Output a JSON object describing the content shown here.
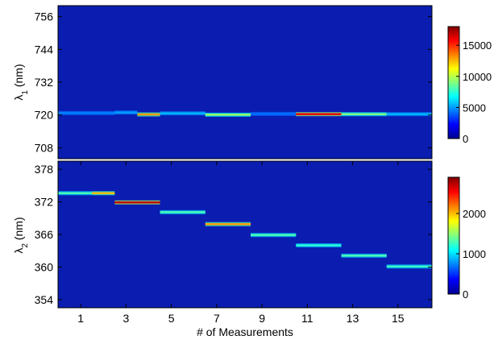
{
  "chart_data": [
    {
      "type": "heatmap",
      "title": "",
      "ylabel_base": "λ",
      "ylabel_sub": "1",
      "ylabel_unit": " (nm)",
      "xlim": [
        0,
        16.5
      ],
      "ylim": [
        760,
        704
      ],
      "yticks": [
        708,
        720,
        732,
        744,
        756
      ],
      "background_color": "#0a1db0",
      "colorbar": {
        "ticks": [
          0,
          5000,
          10000,
          15000
        ],
        "max": 18000
      },
      "segments": [
        {
          "x0": 0.0,
          "x1": 2.5,
          "y": 720.7,
          "peak": 4500
        },
        {
          "x0": 2.5,
          "x1": 3.5,
          "y": 720.9,
          "peak": 5000
        },
        {
          "x0": 3.5,
          "x1": 4.5,
          "y": 720.2,
          "peak": 13000
        },
        {
          "x0": 4.5,
          "x1": 6.5,
          "y": 720.6,
          "peak": 5500
        },
        {
          "x0": 6.5,
          "x1": 8.5,
          "y": 720.1,
          "peak": 9500
        },
        {
          "x0": 8.5,
          "x1": 10.5,
          "y": 720.4,
          "peak": 4200
        },
        {
          "x0": 10.5,
          "x1": 12.5,
          "y": 720.3,
          "peak": 16000
        },
        {
          "x0": 12.5,
          "x1": 14.5,
          "y": 720.3,
          "peak": 9000
        },
        {
          "x0": 14.5,
          "x1": 16.5,
          "y": 720.3,
          "peak": 5500
        }
      ]
    },
    {
      "type": "heatmap",
      "title": "",
      "ylabel_base": "λ",
      "ylabel_sub": "2",
      "ylabel_unit": " (nm)",
      "xlabel": "# of Measurements",
      "xlim": [
        0,
        16.5
      ],
      "xticks": [
        1,
        3,
        5,
        7,
        9,
        11,
        13,
        15
      ],
      "ylim": [
        379.5,
        352.5
      ],
      "yticks": [
        354,
        360,
        366,
        372,
        378
      ],
      "background_color": "#0a1db0",
      "colorbar": {
        "ticks": [
          0,
          1000,
          2000
        ],
        "max": 2900
      },
      "segments": [
        {
          "x0": 0.0,
          "x1": 1.5,
          "y": 373.6,
          "peak": 1300
        },
        {
          "x0": 1.5,
          "x1": 2.5,
          "y": 373.6,
          "peak": 2000
        },
        {
          "x0": 2.5,
          "x1": 4.5,
          "y": 371.9,
          "peak": 2700
        },
        {
          "x0": 4.5,
          "x1": 6.5,
          "y": 370.1,
          "peak": 1300
        },
        {
          "x0": 6.5,
          "x1": 8.5,
          "y": 367.9,
          "peak": 2100
        },
        {
          "x0": 8.5,
          "x1": 10.5,
          "y": 365.9,
          "peak": 1300
        },
        {
          "x0": 10.5,
          "x1": 12.5,
          "y": 364.0,
          "peak": 1200
        },
        {
          "x0": 12.5,
          "x1": 14.5,
          "y": 362.1,
          "peak": 1300
        },
        {
          "x0": 14.5,
          "x1": 16.5,
          "y": 360.1,
          "peak": 1250
        }
      ]
    }
  ]
}
